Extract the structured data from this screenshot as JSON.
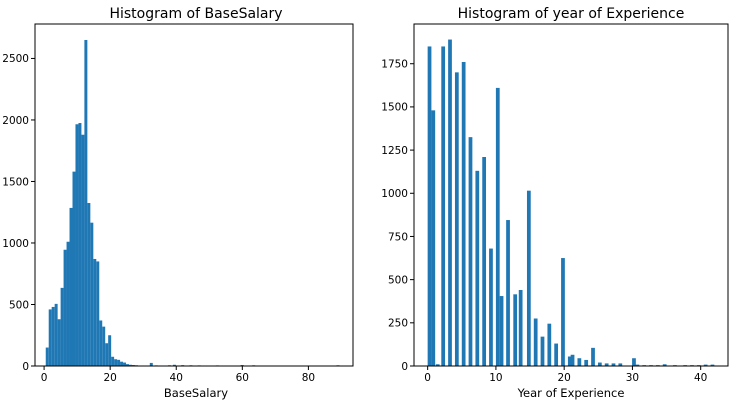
{
  "chart_data": [
    {
      "type": "bar",
      "title": "Histogram of BaseSalary",
      "xlabel": "BaseSalary",
      "ylabel": "",
      "xlim": [
        -2.75,
        93.5
      ],
      "ylim": [
        0,
        2780
      ],
      "xticks": [
        0,
        20,
        40,
        60,
        80
      ],
      "yticks": [
        0,
        500,
        1000,
        1500,
        2000,
        2500
      ],
      "grid": false,
      "color": "#1f77b4",
      "bin_width": 0.9,
      "bins": [
        [
          0.5,
          150
        ],
        [
          1.4,
          460
        ],
        [
          2.3,
          480
        ],
        [
          3.2,
          505
        ],
        [
          4.1,
          380
        ],
        [
          5.0,
          635
        ],
        [
          5.9,
          945
        ],
        [
          6.8,
          1010
        ],
        [
          7.7,
          1285
        ],
        [
          8.6,
          1580
        ],
        [
          9.5,
          1965
        ],
        [
          10.4,
          1975
        ],
        [
          11.3,
          1880
        ],
        [
          12.2,
          2650
        ],
        [
          13.1,
          1325
        ],
        [
          14.0,
          1165
        ],
        [
          14.9,
          870
        ],
        [
          15.8,
          850
        ],
        [
          16.7,
          370
        ],
        [
          17.6,
          320
        ],
        [
          18.5,
          185
        ],
        [
          19.4,
          250
        ],
        [
          20.3,
          75
        ],
        [
          21.2,
          55
        ],
        [
          22.1,
          50
        ],
        [
          23.0,
          35
        ],
        [
          23.9,
          28
        ],
        [
          24.8,
          15
        ],
        [
          25.7,
          10
        ],
        [
          26.6,
          8
        ],
        [
          27.5,
          6
        ],
        [
          28.4,
          4
        ],
        [
          29.3,
          3
        ],
        [
          32.0,
          25
        ],
        [
          33.5,
          5
        ],
        [
          35.0,
          4
        ],
        [
          37.5,
          6
        ],
        [
          39.0,
          10
        ],
        [
          41.5,
          7
        ],
        [
          44.0,
          6
        ],
        [
          46.5,
          5
        ],
        [
          49.0,
          3
        ],
        [
          52.0,
          5
        ],
        [
          56.0,
          3
        ],
        [
          59.5,
          8
        ],
        [
          63.0,
          6
        ],
        [
          67.0,
          4
        ],
        [
          72.0,
          3
        ],
        [
          88.5,
          6
        ]
      ]
    },
    {
      "type": "bar",
      "title": "Histogram of year of Experience",
      "xlabel": "Year of Experience",
      "ylabel": "",
      "xlim": [
        -2,
        44
      ],
      "ylim": [
        0,
        1980
      ],
      "xticks": [
        0,
        10,
        20,
        30,
        40
      ],
      "yticks": [
        0,
        250,
        500,
        750,
        1000,
        1250,
        1500,
        1750
      ],
      "grid": false,
      "color": "#1f77b4",
      "bin_width": 0.55,
      "bins": [
        [
          0,
          1850
        ],
        [
          0.55,
          1480
        ],
        [
          1.2,
          10
        ],
        [
          2,
          1850
        ],
        [
          3,
          1890
        ],
        [
          4,
          1700
        ],
        [
          5,
          1760
        ],
        [
          6,
          1325
        ],
        [
          7,
          1130
        ],
        [
          8,
          1210
        ],
        [
          9,
          680
        ],
        [
          10,
          1610
        ],
        [
          10.55,
          405
        ],
        [
          11.5,
          845
        ],
        [
          12.55,
          415
        ],
        [
          13.35,
          440
        ],
        [
          14.55,
          1015
        ],
        [
          15.55,
          275
        ],
        [
          16.55,
          170
        ],
        [
          17.55,
          245
        ],
        [
          18.55,
          130
        ],
        [
          19.55,
          625
        ],
        [
          20.55,
          55
        ],
        [
          20.95,
          65
        ],
        [
          21.95,
          45
        ],
        [
          22.95,
          35
        ],
        [
          23.95,
          105
        ],
        [
          24.95,
          20
        ],
        [
          25.95,
          15
        ],
        [
          26.95,
          15
        ],
        [
          27.95,
          15
        ],
        [
          29.95,
          45
        ],
        [
          30.45,
          8
        ],
        [
          31.45,
          5
        ],
        [
          32.45,
          5
        ],
        [
          33.45,
          5
        ],
        [
          34.45,
          10
        ],
        [
          35.95,
          5
        ],
        [
          37.45,
          5
        ],
        [
          38.45,
          5
        ],
        [
          39.45,
          5
        ],
        [
          40.45,
          8
        ],
        [
          41.45,
          8
        ]
      ]
    }
  ]
}
